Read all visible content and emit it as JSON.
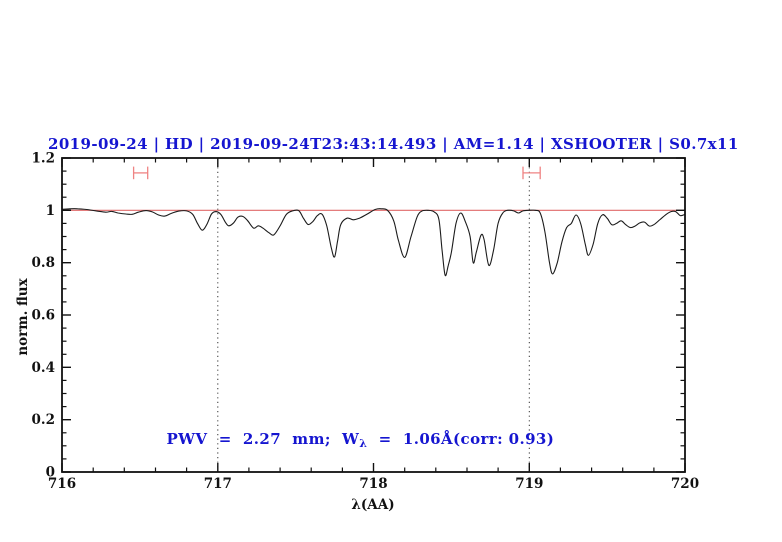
{
  "title": "2019-09-24 | HD | 2019-09-24T23:43:14.493 | AM=1.14 | XSHOOTER | S0.7x11",
  "annotation": {
    "part1": "PWV  =  2.27  mm;  W",
    "sub": "λ",
    "part2": "  =  1.06Å(corr: 0.93)"
  },
  "colors": {
    "accent_blue": "#1515d0",
    "reference_red": "#e06a6a",
    "marker_red": "#ef8383",
    "spectrum_black": "#1c1c1c",
    "axis_black": "#111111",
    "dotted_gray": "#333333"
  },
  "chart_data": {
    "type": "line",
    "title": "2019-09-24 | HD | 2019-09-24T23:43:14.493 | AM=1.14 | XSHOOTER | S0.7x11",
    "xlabel": "λ(AA)",
    "ylabel": "norm. flux",
    "xlim": [
      716,
      720
    ],
    "ylim": [
      0,
      1.2
    ],
    "grid": "off",
    "legend": "none",
    "x_major_ticks": [
      716,
      717,
      718,
      719,
      720
    ],
    "x_tick_labels": [
      "716",
      "717",
      "718",
      "719",
      "720"
    ],
    "x_minor_step": 0.2,
    "y_major_ticks": [
      0,
      0.2,
      0.4,
      0.6,
      0.8,
      1,
      1.2
    ],
    "y_tick_labels": [
      "0",
      "0.2",
      "0.4",
      "0.6",
      "0.8",
      "1",
      "1.2"
    ],
    "y_minor_step": 0.05,
    "reference_line_y": 1.0,
    "vertical_dotted_lines_x": [
      717,
      719
    ],
    "range_markers": [
      {
        "x_min": 716.46,
        "x_max": 716.55,
        "y": 1.143,
        "cap_half_height": 0.024
      },
      {
        "x_min": 718.96,
        "x_max": 719.07,
        "y": 1.143,
        "cap_half_height": 0.024
      }
    ],
    "series": [
      {
        "name": "spectrum",
        "points": [
          [
            716.0,
            1.004
          ],
          [
            716.05,
            1.006
          ],
          [
            716.1,
            1.006
          ],
          [
            716.16,
            1.003
          ],
          [
            716.22,
            0.998
          ],
          [
            716.28,
            0.993
          ],
          [
            716.32,
            0.996
          ],
          [
            716.36,
            0.99
          ],
          [
            716.41,
            0.986
          ],
          [
            716.45,
            0.985
          ],
          [
            716.49,
            0.993
          ],
          [
            716.54,
            0.999
          ],
          [
            716.58,
            0.994
          ],
          [
            716.62,
            0.982
          ],
          [
            716.66,
            0.978
          ],
          [
            716.7,
            0.988
          ],
          [
            716.75,
            0.997
          ],
          [
            716.8,
            0.998
          ],
          [
            716.84,
            0.984
          ],
          [
            716.87,
            0.95
          ],
          [
            716.9,
            0.924
          ],
          [
            716.93,
            0.946
          ],
          [
            716.96,
            0.986
          ],
          [
            716.99,
            0.995
          ],
          [
            717.02,
            0.984
          ],
          [
            717.05,
            0.954
          ],
          [
            717.07,
            0.941
          ],
          [
            717.1,
            0.951
          ],
          [
            717.13,
            0.974
          ],
          [
            717.16,
            0.977
          ],
          [
            717.19,
            0.962
          ],
          [
            717.23,
            0.932
          ],
          [
            717.26,
            0.941
          ],
          [
            717.29,
            0.932
          ],
          [
            717.33,
            0.914
          ],
          [
            717.36,
            0.906
          ],
          [
            717.4,
            0.94
          ],
          [
            717.44,
            0.984
          ],
          [
            717.48,
            0.998
          ],
          [
            717.52,
            0.999
          ],
          [
            717.55,
            0.97
          ],
          [
            717.58,
            0.946
          ],
          [
            717.61,
            0.957
          ],
          [
            717.64,
            0.98
          ],
          [
            717.67,
            0.985
          ],
          [
            717.7,
            0.94
          ],
          [
            717.73,
            0.855
          ],
          [
            717.75,
            0.822
          ],
          [
            717.77,
            0.885
          ],
          [
            717.79,
            0.946
          ],
          [
            717.83,
            0.97
          ],
          [
            717.87,
            0.964
          ],
          [
            717.91,
            0.97
          ],
          [
            717.96,
            0.986
          ],
          [
            718.01,
            1.003
          ],
          [
            718.05,
            1.006
          ],
          [
            718.09,
            1.0
          ],
          [
            718.13,
            0.96
          ],
          [
            718.16,
            0.885
          ],
          [
            718.2,
            0.82
          ],
          [
            718.24,
            0.898
          ],
          [
            718.28,
            0.975
          ],
          [
            718.31,
            0.997
          ],
          [
            718.35,
            1.0
          ],
          [
            718.39,
            0.994
          ],
          [
            718.42,
            0.965
          ],
          [
            718.44,
            0.85
          ],
          [
            718.46,
            0.752
          ],
          [
            718.48,
            0.79
          ],
          [
            718.5,
            0.84
          ],
          [
            718.53,
            0.95
          ],
          [
            718.56,
            0.99
          ],
          [
            718.59,
            0.956
          ],
          [
            718.62,
            0.9
          ],
          [
            718.64,
            0.8
          ],
          [
            718.66,
            0.84
          ],
          [
            718.69,
            0.905
          ],
          [
            718.71,
            0.888
          ],
          [
            718.74,
            0.79
          ],
          [
            718.77,
            0.845
          ],
          [
            718.8,
            0.95
          ],
          [
            718.83,
            0.99
          ],
          [
            718.86,
            1.0
          ],
          [
            718.9,
            0.998
          ],
          [
            718.93,
            0.99
          ],
          [
            718.96,
            0.998
          ],
          [
            719.0,
            1.0
          ],
          [
            719.04,
            1.0
          ],
          [
            719.07,
            0.99
          ],
          [
            719.1,
            0.92
          ],
          [
            719.13,
            0.8
          ],
          [
            719.15,
            0.757
          ],
          [
            719.18,
            0.8
          ],
          [
            719.21,
            0.88
          ],
          [
            719.24,
            0.934
          ],
          [
            719.27,
            0.95
          ],
          [
            719.3,
            0.982
          ],
          [
            719.33,
            0.95
          ],
          [
            719.36,
            0.87
          ],
          [
            719.38,
            0.828
          ],
          [
            719.41,
            0.87
          ],
          [
            719.44,
            0.95
          ],
          [
            719.47,
            0.983
          ],
          [
            719.5,
            0.97
          ],
          [
            719.53,
            0.945
          ],
          [
            719.56,
            0.95
          ],
          [
            719.59,
            0.96
          ],
          [
            719.62,
            0.945
          ],
          [
            719.65,
            0.934
          ],
          [
            719.68,
            0.94
          ],
          [
            719.71,
            0.952
          ],
          [
            719.74,
            0.955
          ],
          [
            719.77,
            0.94
          ],
          [
            719.8,
            0.945
          ],
          [
            719.84,
            0.965
          ],
          [
            719.88,
            0.985
          ],
          [
            719.91,
            0.995
          ],
          [
            719.94,
            0.995
          ],
          [
            719.97,
            0.98
          ],
          [
            720.0,
            0.985
          ]
        ]
      }
    ]
  }
}
